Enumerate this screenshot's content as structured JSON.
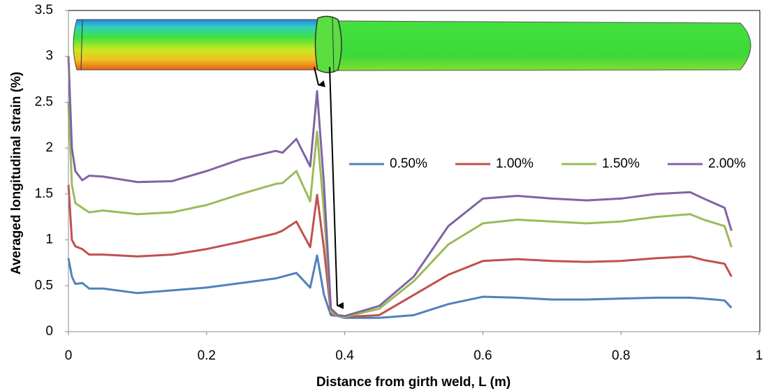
{
  "chart_data": {
    "type": "line",
    "x_label": "Distance from girth weld, L (m)",
    "y_label": "Averaged longitudinal strain  (%)",
    "x": [
      0,
      0.005,
      0.01,
      0.02,
      0.03,
      0.05,
      0.1,
      0.15,
      0.2,
      0.25,
      0.3,
      0.31,
      0.33,
      0.35,
      0.36,
      0.37,
      0.38,
      0.39,
      0.4,
      0.45,
      0.5,
      0.55,
      0.6,
      0.65,
      0.7,
      0.75,
      0.8,
      0.85,
      0.9,
      0.92,
      0.95,
      0.96
    ],
    "series": [
      {
        "name": "0.50%",
        "color": "#4f81bd",
        "values": [
          0.8,
          0.6,
          0.52,
          0.53,
          0.47,
          0.47,
          0.42,
          0.45,
          0.48,
          0.53,
          0.58,
          0.6,
          0.64,
          0.48,
          0.83,
          0.4,
          0.18,
          0.17,
          0.15,
          0.15,
          0.18,
          0.3,
          0.38,
          0.37,
          0.35,
          0.35,
          0.36,
          0.37,
          0.37,
          0.36,
          0.34,
          0.26
        ]
      },
      {
        "name": "1.00%",
        "color": "#c0504d",
        "values": [
          1.6,
          1.0,
          0.93,
          0.9,
          0.84,
          0.84,
          0.82,
          0.84,
          0.9,
          0.98,
          1.07,
          1.1,
          1.2,
          0.92,
          1.49,
          0.9,
          0.2,
          0.17,
          0.16,
          0.18,
          0.4,
          0.62,
          0.77,
          0.79,
          0.77,
          0.76,
          0.77,
          0.8,
          0.82,
          0.78,
          0.74,
          0.6
        ]
      },
      {
        "name": "1.50%",
        "color": "#9bbb59",
        "values": [
          2.5,
          1.6,
          1.4,
          1.35,
          1.3,
          1.32,
          1.28,
          1.3,
          1.38,
          1.5,
          1.61,
          1.62,
          1.75,
          1.42,
          2.18,
          1.3,
          0.22,
          0.17,
          0.16,
          0.25,
          0.55,
          0.95,
          1.18,
          1.22,
          1.2,
          1.18,
          1.2,
          1.25,
          1.28,
          1.22,
          1.15,
          0.92
        ]
      },
      {
        "name": "2.00%",
        "color": "#8064a2",
        "values": [
          3.0,
          2.0,
          1.75,
          1.65,
          1.7,
          1.69,
          1.63,
          1.64,
          1.75,
          1.88,
          1.97,
          1.95,
          2.1,
          1.8,
          2.62,
          1.6,
          0.25,
          0.18,
          0.17,
          0.28,
          0.6,
          1.15,
          1.45,
          1.48,
          1.45,
          1.43,
          1.45,
          1.5,
          1.52,
          1.45,
          1.35,
          1.1
        ]
      }
    ],
    "xlim": [
      0,
      1
    ],
    "xticks": [
      0,
      0.2,
      0.4,
      0.6,
      0.8,
      1
    ],
    "ylim": [
      0,
      3.5
    ],
    "yticks": [
      0,
      0.5,
      1,
      1.5,
      2,
      2.5,
      3,
      3.5
    ],
    "legend": "right"
  }
}
